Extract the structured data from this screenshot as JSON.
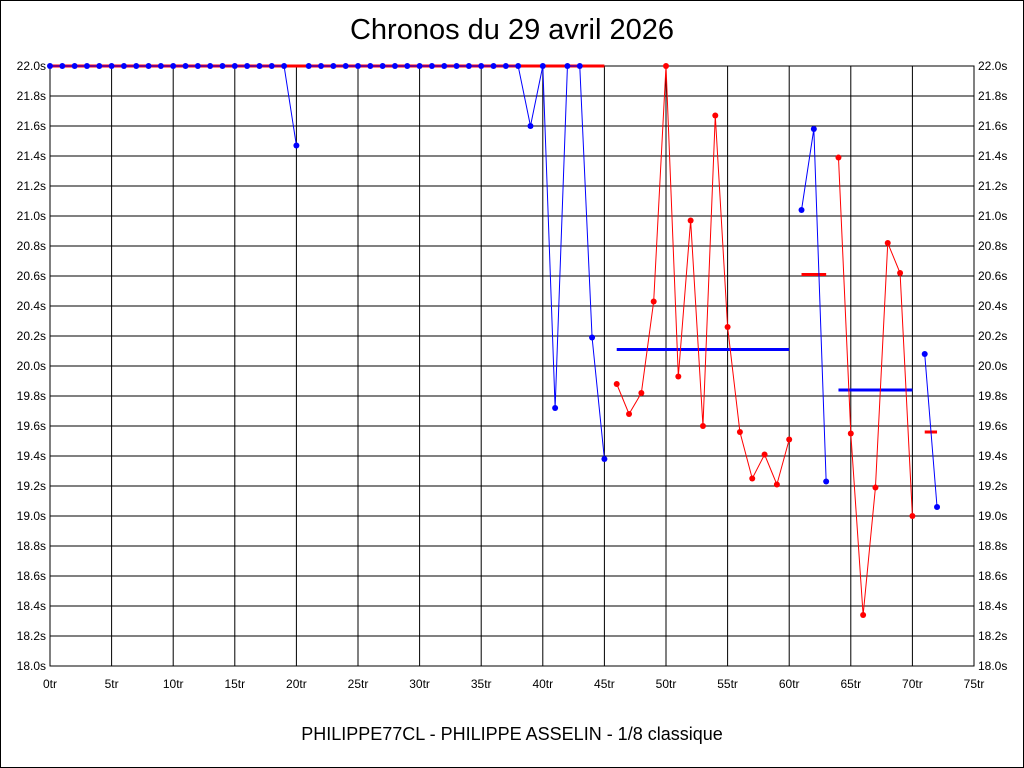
{
  "chart_data": {
    "type": "line",
    "title": "Chronos du 29 avril 2026",
    "footer": "PHILIPPE77CL - PHILIPPE ASSELIN - 1/8 classique",
    "xlim": [
      0,
      75
    ],
    "ylim": [
      18.0,
      22.0
    ],
    "x_ticks": [
      0,
      5,
      10,
      15,
      20,
      25,
      30,
      35,
      40,
      45,
      50,
      55,
      60,
      65,
      70,
      75
    ],
    "x_tick_labels": [
      "0tr",
      "5tr",
      "10tr",
      "15tr",
      "20tr",
      "25tr",
      "30tr",
      "35tr",
      "40tr",
      "45tr",
      "50tr",
      "55tr",
      "60tr",
      "65tr",
      "70tr",
      "75tr"
    ],
    "y_ticks": [
      18.0,
      18.2,
      18.4,
      18.6,
      18.8,
      19.0,
      19.2,
      19.4,
      19.6,
      19.8,
      20.0,
      20.2,
      20.4,
      20.6,
      20.8,
      21.0,
      21.2,
      21.4,
      21.6,
      21.8,
      22.0
    ],
    "y_tick_labels": [
      "18.0s",
      "18.2s",
      "18.4s",
      "18.6s",
      "18.8s",
      "19.0s",
      "19.2s",
      "19.4s",
      "19.6s",
      "19.8s",
      "20.0s",
      "20.2s",
      "20.4s",
      "20.6s",
      "20.8s",
      "21.0s",
      "21.2s",
      "21.4s",
      "21.6s",
      "21.8s",
      "22.0s"
    ],
    "grid": true,
    "colors": {
      "blue": "#0000ff",
      "red": "#ff0000"
    },
    "series": [
      {
        "color": "blue",
        "x": [
          0,
          1,
          2,
          3,
          4,
          5,
          6,
          7,
          8,
          9,
          10,
          11,
          12,
          13,
          14,
          15,
          16,
          17,
          18,
          19,
          20
        ],
        "y": [
          22,
          22,
          22,
          22,
          22,
          22,
          22,
          22,
          22,
          22,
          22,
          22,
          22,
          22,
          22,
          22,
          22,
          22,
          22,
          22,
          21.47
        ]
      },
      {
        "color": "blue",
        "x": [
          21,
          22,
          23,
          24,
          25,
          26,
          27,
          28,
          29,
          30,
          31,
          32,
          33,
          34,
          35,
          36,
          37,
          38,
          39,
          40,
          41,
          42,
          43,
          44,
          45
        ],
        "y": [
          22,
          22,
          22,
          22,
          22,
          22,
          22,
          22,
          22,
          22,
          22,
          22,
          22,
          22,
          22,
          22,
          22,
          22,
          21.6,
          22,
          19.72,
          22,
          22,
          20.19,
          19.38
        ]
      },
      {
        "color": "red",
        "x": [
          46,
          47,
          48,
          49,
          50,
          51,
          52,
          53,
          54,
          55,
          56,
          57,
          58,
          59,
          60
        ],
        "y": [
          19.88,
          19.68,
          19.82,
          20.43,
          22.0,
          19.93,
          20.97,
          19.6,
          21.67,
          20.26,
          19.56,
          19.25,
          19.41,
          19.21,
          19.51
        ]
      },
      {
        "color": "blue",
        "x": [
          61,
          62,
          63
        ],
        "y": [
          21.04,
          21.58,
          19.23
        ]
      },
      {
        "color": "red",
        "x": [
          64,
          65,
          66,
          67,
          68,
          69,
          70
        ],
        "y": [
          21.39,
          19.55,
          18.34,
          19.19,
          20.82,
          20.62,
          19.0
        ]
      },
      {
        "color": "blue",
        "x": [
          71,
          72
        ],
        "y": [
          20.08,
          19.06
        ]
      }
    ],
    "averages": [
      {
        "color": "red",
        "x": [
          0,
          45
        ],
        "y": 22.0
      },
      {
        "color": "blue",
        "x": [
          46,
          60
        ],
        "y": 20.11
      },
      {
        "color": "red",
        "x": [
          61,
          63
        ],
        "y": 20.61
      },
      {
        "color": "blue",
        "x": [
          64,
          70
        ],
        "y": 19.84
      },
      {
        "color": "red",
        "x": [
          71,
          72
        ],
        "y": 19.56
      }
    ]
  }
}
